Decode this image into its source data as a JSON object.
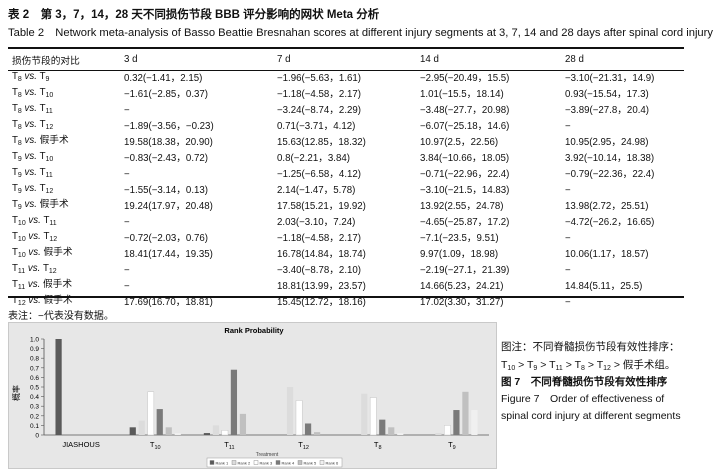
{
  "caption": {
    "cn": "表 2　第 3，7，14，28 天不同损伤节段 BBB 评分影响的网状 Meta 分析",
    "en": "Table 2　Network meta-analysis of Basso Beattie Bresnahan scores at different injury segments at 3, 7, 14 and 28 days after spinal cord injury"
  },
  "table": {
    "headers": [
      "损伤节段的对比",
      "3 d",
      "7 d",
      "14 d",
      "28 d"
    ],
    "rows": [
      {
        "a": "T",
        "as": "8",
        "b": "T",
        "bs": "9",
        "v": [
          "0.32(−1.41，2.15)",
          "−1.96(−5.63，1.61)",
          "−2.95(−20.49，15.5)",
          "−3.10(−21.31，14.9)"
        ]
      },
      {
        "a": "T",
        "as": "8",
        "b": "T",
        "bs": "10",
        "v": [
          "−1.61(−2.85，0.37)",
          "−1.18(−4.58，2.17)",
          "1.01(−15.5，18.14)",
          "0.93(−15.54，17.3)"
        ]
      },
      {
        "a": "T",
        "as": "8",
        "b": "T",
        "bs": "11",
        "v": [
          "−",
          "−3.24(−8.74，2.29)",
          "−3.48(−27.7，20.98)",
          "−3.89(−27.8，20.4)"
        ]
      },
      {
        "a": "T",
        "as": "8",
        "b": "T",
        "bs": "12",
        "v": [
          "−1.89(−3.56，−0.23)",
          "0.71(−3.71，4.12)",
          "−6.07(−25.18，14.6)",
          "−"
        ]
      },
      {
        "a": "T",
        "as": "8",
        "b": "假手术",
        "bs": "",
        "v": [
          "19.58(18.38，20.90)",
          "15.63(12.85，18.32)",
          "10.97(2.5，22.56)",
          "10.95(2.95，24.98)"
        ]
      },
      {
        "a": "T",
        "as": "9",
        "b": "T",
        "bs": "10",
        "v": [
          "−0.83(−2.43，0.72)",
          "0.8(−2.21，3.84)",
          "3.84(−10.66，18.05)",
          "3.92(−10.14，18.38)"
        ]
      },
      {
        "a": "T",
        "as": "9",
        "b": "T",
        "bs": "11",
        "v": [
          "−",
          "−1.25(−6.58，4.12)",
          "−0.71(−22.96，22.4)",
          "−0.79(−22.36，22.4)"
        ]
      },
      {
        "a": "T",
        "as": "9",
        "b": "T",
        "bs": "12",
        "v": [
          "−1.55(−3.14，0.13)",
          "2.14(−1.47，5.78)",
          "−3.10(−21.5，14.83)",
          "−"
        ]
      },
      {
        "a": "T",
        "as": "9",
        "b": "假手术",
        "bs": "",
        "v": [
          "19.24(17.97，20.48)",
          "17.58(15.21，19.92)",
          "13.92(2.55，24.78)",
          "13.98(2.72，25.51)"
        ]
      },
      {
        "a": "T",
        "as": "10",
        "b": "T",
        "bs": "11",
        "v": [
          "−",
          "2.03(−3.10，7.24)",
          "−4.65(−25.87，17.2)",
          "−4.72(−26.2，16.65)"
        ]
      },
      {
        "a": "T",
        "as": "10",
        "b": "T",
        "bs": "12",
        "v": [
          "−0.72(−2.03，0.76)",
          "−1.18(−4.58，2.17)",
          "−7.1(−23.5，9.51)",
          "−"
        ]
      },
      {
        "a": "T",
        "as": "10",
        "b": "假手术",
        "bs": "",
        "v": [
          "18.41(17.44，19.35)",
          "16.78(14.84，18.74)",
          "9.97(1.09，18.98)",
          "10.06(1.17，18.57)"
        ]
      },
      {
        "a": "T",
        "as": "11",
        "b": "T",
        "bs": "12",
        "v": [
          "−",
          "−3.40(−8.78，2.10)",
          "−2.19(−27.1，21.39)",
          "−"
        ]
      },
      {
        "a": "T",
        "as": "11",
        "b": "假手术",
        "bs": "",
        "v": [
          "−",
          "18.81(13.99，23.57)",
          "14.66(5.23，24.21)",
          "14.84(5.11，25.5)"
        ]
      },
      {
        "a": "T",
        "as": "12",
        "b": "假手术",
        "bs": "",
        "v": [
          "17.69(16.70，18.81)",
          "15.45(12.72，18.16)",
          "17.02(3.30，31.27)",
          "−"
        ]
      }
    ],
    "vs": " vs. "
  },
  "note": "表注：−代表没有数据。",
  "side_note": {
    "line1": "图注：不同脊髓损伤节段有效性排序：",
    "line2_parts": [
      "T",
      "10",
      " > T",
      "9",
      " > T",
      "11",
      " > T",
      "8",
      " > T",
      "12",
      " >  假手术组。"
    ]
  },
  "figure_caption": {
    "cn": "图 7　不同脊髓损伤节段有效性排序",
    "en": "Figure 7　Order of effectiveness of spinal cord injury at different segments"
  },
  "chart_data": {
    "type": "bar",
    "title": "Rank Probability",
    "ylabel": "概率",
    "xlabel": "Treatment",
    "ylim": [
      0,
      1.0
    ],
    "yticks": [
      "0",
      "0.1",
      "0.2",
      "0.3",
      "0.4",
      "0.5",
      "0.6",
      "0.7",
      "0.8",
      "0.9",
      "1.0"
    ],
    "categories": [
      "JIASHOUS",
      "T10",
      "T11",
      "T12",
      "T8",
      "T9"
    ],
    "category_labels": [
      {
        "base": "JIASHOUS",
        "sub": ""
      },
      {
        "base": "T",
        "sub": "10"
      },
      {
        "base": "T",
        "sub": "11"
      },
      {
        "base": "T",
        "sub": "12"
      },
      {
        "base": "T",
        "sub": "8"
      },
      {
        "base": "T",
        "sub": "9"
      }
    ],
    "series": [
      {
        "name": "Rank 1",
        "color": "#5a5a5a",
        "values": [
          1.0,
          0.08,
          0.02,
          0.0,
          0.0,
          0.0
        ]
      },
      {
        "name": "Rank 2",
        "color": "#dcdcdc",
        "values": [
          0.0,
          0.15,
          0.1,
          0.5,
          0.43,
          0.02
        ]
      },
      {
        "name": "Rank 3",
        "color": "#ffffff",
        "values": [
          0.0,
          0.45,
          0.05,
          0.36,
          0.39,
          0.1
        ]
      },
      {
        "name": "Rank 4",
        "color": "#7a7a7a",
        "values": [
          0.0,
          0.27,
          0.68,
          0.12,
          0.16,
          0.26
        ]
      },
      {
        "name": "Rank 5",
        "color": "#c0c0c0",
        "values": [
          0.0,
          0.08,
          0.22,
          0.03,
          0.08,
          0.45
        ]
      },
      {
        "name": "Rank 6",
        "color": "#f0f0f0",
        "values": [
          0.0,
          0.02,
          0.0,
          0.0,
          0.02,
          0.26
        ]
      }
    ],
    "legend": "bottom",
    "grid": false
  }
}
